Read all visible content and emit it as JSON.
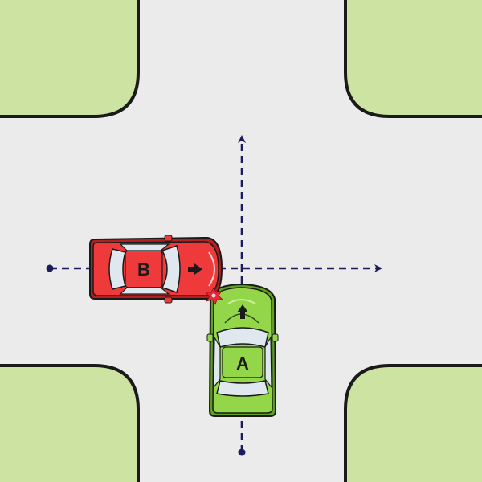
{
  "colors": {
    "road": "#ebebeb",
    "grass": "#cde3a2",
    "curb": "#1a1a1a",
    "path": "#1c1b5e",
    "car_a_body": "#93d64a",
    "car_a_dark": "#5e9e22",
    "car_b_body": "#ee3a3a",
    "car_b_dark": "#b51f1f",
    "glass": "#dfe8ef",
    "impact": "#e8283a"
  },
  "car_a": {
    "label": "A",
    "heading": "north",
    "arrow_icon": "arrow-up-icon"
  },
  "car_b": {
    "label": "B",
    "heading": "east",
    "arrow_icon": "arrow-right-icon"
  },
  "collision": {
    "icon": "impact-star-icon"
  }
}
